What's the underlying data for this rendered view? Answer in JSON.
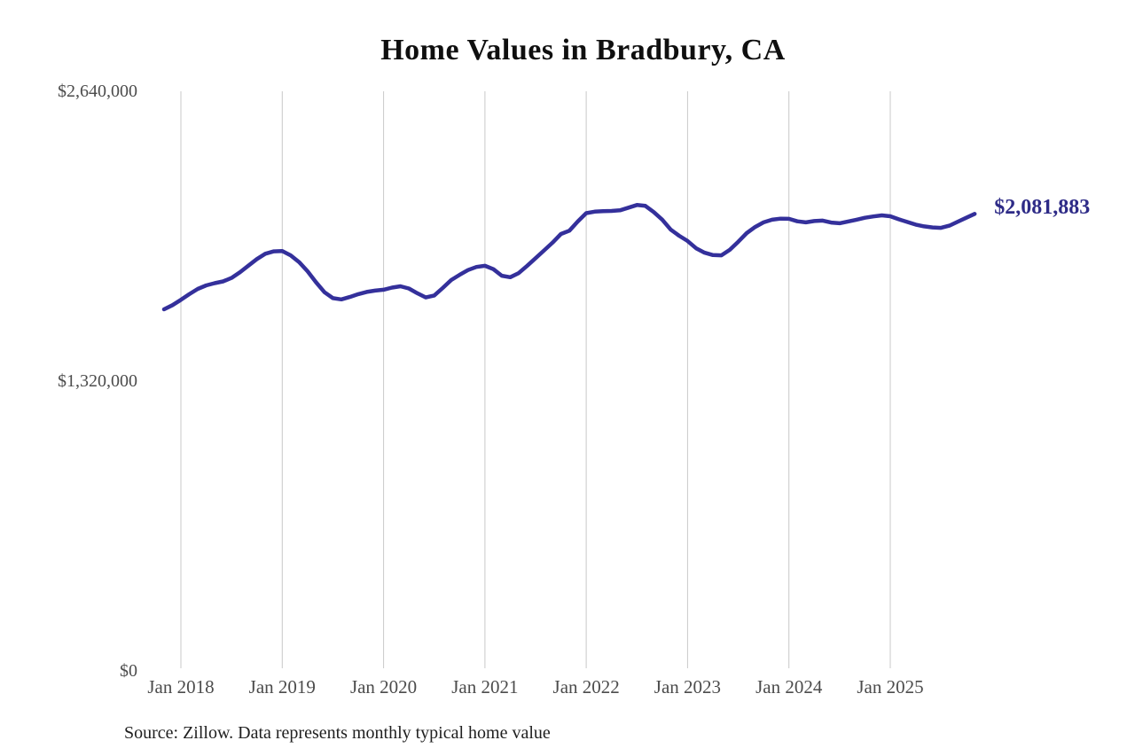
{
  "chart": {
    "title": "Home Values in Bradbury, CA",
    "end_label": "$2,081,883",
    "source_note": "Source: Zillow. Data represents monthly typical home value",
    "colors": {
      "line": "#34309b",
      "end_label": "#2e2b87",
      "gridline": "#c8c8c8",
      "tick_text": "#4c4c4c",
      "title_text": "#0f0f0f",
      "source_text": "#1f1f1f"
    }
  },
  "chart_data": {
    "type": "line",
    "title": "Home Values in Bradbury, CA",
    "ylabel": "",
    "xlabel": "",
    "unit": "USD",
    "ylim": [
      0,
      2640000
    ],
    "grid": "vertical-only",
    "legend": "none",
    "y_ticks": [
      {
        "label": "$0",
        "value": 0
      },
      {
        "label": "$1,320,000",
        "value": 1320000
      },
      {
        "label": "$2,640,000",
        "value": 2640000
      }
    ],
    "x_ticks": [
      {
        "label": "Jan 2018",
        "month": "2018-01"
      },
      {
        "label": "Jan 2019",
        "month": "2019-01"
      },
      {
        "label": "Jan 2020",
        "month": "2020-01"
      },
      {
        "label": "Jan 2021",
        "month": "2021-01"
      },
      {
        "label": "Jan 2022",
        "month": "2022-01"
      },
      {
        "label": "Jan 2023",
        "month": "2023-01"
      },
      {
        "label": "Jan 2024",
        "month": "2024-01"
      },
      {
        "label": "Jan 2025",
        "month": "2025-01"
      }
    ],
    "series": [
      {
        "name": "Typical home value",
        "last_value_label": "$2,081,883",
        "points": [
          [
            "2017-11",
            1647000
          ],
          [
            "2017-12",
            1666000
          ],
          [
            "2018-01",
            1690000
          ],
          [
            "2018-02",
            1716000
          ],
          [
            "2018-03",
            1740000
          ],
          [
            "2018-04",
            1756000
          ],
          [
            "2018-05",
            1766000
          ],
          [
            "2018-06",
            1774000
          ],
          [
            "2018-07",
            1790000
          ],
          [
            "2018-08",
            1816000
          ],
          [
            "2018-09",
            1846000
          ],
          [
            "2018-10",
            1876000
          ],
          [
            "2018-11",
            1900000
          ],
          [
            "2018-12",
            1911000
          ],
          [
            "2019-01",
            1912000
          ],
          [
            "2019-02",
            1893000
          ],
          [
            "2019-03",
            1862000
          ],
          [
            "2019-04",
            1820000
          ],
          [
            "2019-05",
            1770000
          ],
          [
            "2019-06",
            1725000
          ],
          [
            "2019-07",
            1698000
          ],
          [
            "2019-08",
            1692000
          ],
          [
            "2019-09",
            1703000
          ],
          [
            "2019-10",
            1716000
          ],
          [
            "2019-11",
            1726000
          ],
          [
            "2019-12",
            1732000
          ],
          [
            "2020-01",
            1736000
          ],
          [
            "2020-02",
            1746000
          ],
          [
            "2020-03",
            1752000
          ],
          [
            "2020-04",
            1742000
          ],
          [
            "2020-05",
            1720000
          ],
          [
            "2020-06",
            1701000
          ],
          [
            "2020-07",
            1710000
          ],
          [
            "2020-08",
            1744000
          ],
          [
            "2020-09",
            1780000
          ],
          [
            "2020-10",
            1804000
          ],
          [
            "2020-11",
            1826000
          ],
          [
            "2020-12",
            1840000
          ],
          [
            "2021-01",
            1845000
          ],
          [
            "2021-02",
            1830000
          ],
          [
            "2021-03",
            1800000
          ],
          [
            "2021-04",
            1793000
          ],
          [
            "2021-05",
            1812000
          ],
          [
            "2021-06",
            1845000
          ],
          [
            "2021-07",
            1880000
          ],
          [
            "2021-08",
            1915000
          ],
          [
            "2021-09",
            1950000
          ],
          [
            "2021-10",
            1990000
          ],
          [
            "2021-11",
            2005000
          ],
          [
            "2021-12",
            2047000
          ],
          [
            "2022-01",
            2085000
          ],
          [
            "2022-02",
            2092000
          ],
          [
            "2022-03",
            2094000
          ],
          [
            "2022-04",
            2095000
          ],
          [
            "2022-05",
            2098000
          ],
          [
            "2022-06",
            2110000
          ],
          [
            "2022-07",
            2122000
          ],
          [
            "2022-08",
            2118000
          ],
          [
            "2022-09",
            2090000
          ],
          [
            "2022-10",
            2055000
          ],
          [
            "2022-11",
            2010000
          ],
          [
            "2022-12",
            1982000
          ],
          [
            "2023-01",
            1958000
          ],
          [
            "2023-02",
            1925000
          ],
          [
            "2023-03",
            1905000
          ],
          [
            "2023-04",
            1894000
          ],
          [
            "2023-05",
            1893000
          ],
          [
            "2023-06",
            1918000
          ],
          [
            "2023-07",
            1955000
          ],
          [
            "2023-08",
            1994000
          ],
          [
            "2023-09",
            2022000
          ],
          [
            "2023-10",
            2043000
          ],
          [
            "2023-11",
            2055000
          ],
          [
            "2023-12",
            2060000
          ],
          [
            "2024-01",
            2059000
          ],
          [
            "2024-02",
            2048000
          ],
          [
            "2024-03",
            2043000
          ],
          [
            "2024-04",
            2049000
          ],
          [
            "2024-05",
            2051000
          ],
          [
            "2024-06",
            2042000
          ],
          [
            "2024-07",
            2039000
          ],
          [
            "2024-08",
            2047000
          ],
          [
            "2024-09",
            2055000
          ],
          [
            "2024-10",
            2064000
          ],
          [
            "2024-11",
            2070000
          ],
          [
            "2024-12",
            2075000
          ],
          [
            "2025-01",
            2071000
          ],
          [
            "2025-02",
            2057000
          ],
          [
            "2025-03",
            2045000
          ],
          [
            "2025-04",
            2033000
          ],
          [
            "2025-05",
            2025000
          ],
          [
            "2025-06",
            2020000
          ],
          [
            "2025-07",
            2018000
          ],
          [
            "2025-08",
            2028000
          ],
          [
            "2025-09",
            2046000
          ],
          [
            "2025-10",
            2064000
          ],
          [
            "2025-11",
            2081883
          ]
        ]
      }
    ]
  }
}
